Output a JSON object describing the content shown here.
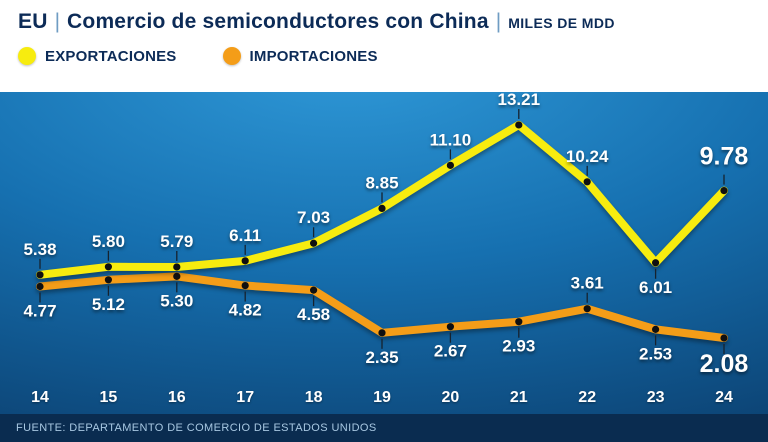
{
  "header": {
    "title_prefix": "EU",
    "separator": "|",
    "title_main": "Comercio de semiconductores con China",
    "title_unit": "MILES DE MDD"
  },
  "legend": [
    {
      "label": "EXPORTACIONES",
      "color": "#f7ec0f"
    },
    {
      "label": "IMPORTACIONES",
      "color": "#f49d18"
    }
  ],
  "chart_data": {
    "type": "line",
    "title": "EU | Comercio de semiconductores con China",
    "unit": "MILES DE MDD",
    "x": [
      "14",
      "15",
      "16",
      "17",
      "18",
      "19",
      "20",
      "21",
      "22",
      "23",
      "24"
    ],
    "series": [
      {
        "name": "exportaciones",
        "color": "#f7ec0f",
        "values": [
          5.38,
          5.8,
          5.79,
          6.11,
          7.03,
          8.85,
          11.1,
          13.21,
          10.24,
          6.01,
          9.78
        ],
        "label_positions": [
          "above",
          "above",
          "above",
          "above",
          "above",
          "above",
          "above",
          "above",
          "above",
          "below",
          "above"
        ]
      },
      {
        "name": "importaciones",
        "color": "#f49d18",
        "values": [
          4.77,
          5.12,
          5.3,
          4.82,
          4.58,
          2.35,
          2.67,
          2.93,
          3.61,
          2.53,
          2.08
        ],
        "label_positions": [
          "below",
          "below",
          "below",
          "below",
          "below",
          "below",
          "below",
          "below",
          "above",
          "below",
          "below"
        ]
      }
    ],
    "big_label_indices": [
      10
    ],
    "ylim": [
      0,
      14.5
    ],
    "grid": false,
    "legend_position": "top-left"
  },
  "footer": {
    "source": "FUENTE: DEPARTAMENTO DE COMERCIO DE ESTADOS UNIDOS"
  }
}
